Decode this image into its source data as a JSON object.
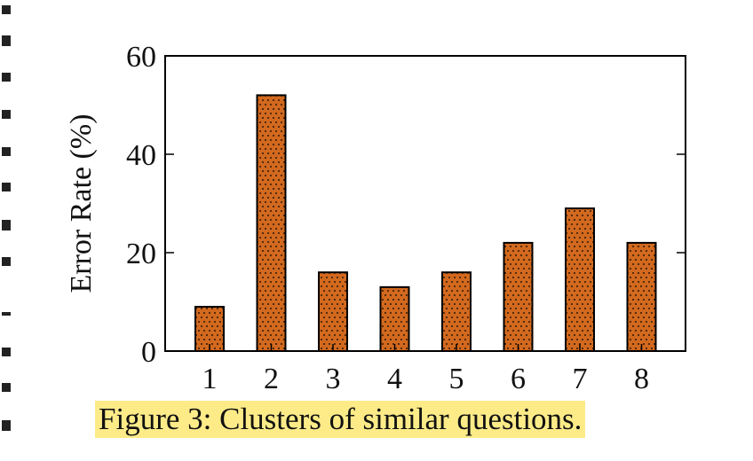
{
  "chart_data": {
    "type": "bar",
    "categories": [
      "1",
      "2",
      "3",
      "4",
      "5",
      "6",
      "7",
      "8"
    ],
    "values": [
      9,
      52,
      16,
      13,
      16,
      22,
      29,
      22
    ],
    "title": "",
    "xlabel": "",
    "ylabel": "Error Rate (%)",
    "ylim": [
      0,
      60
    ],
    "yticks": [
      0,
      20,
      40,
      60
    ],
    "grid": false,
    "bar_color": "#d2691e",
    "bar_pattern": "dots"
  },
  "caption": {
    "text": "Figure 3: Clusters of similar questions.",
    "highlight_color": "#fdeb88"
  }
}
